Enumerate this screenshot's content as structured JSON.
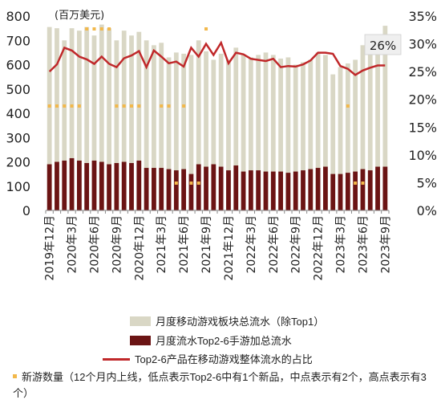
{
  "chart_data": {
    "type": "bar",
    "unit_label": "(百万美元)",
    "categories": [
      "2019年12月",
      "2020年1月",
      "2020年2月",
      "2020年3月",
      "2020年4月",
      "2020年5月",
      "2020年6月",
      "2020年7月",
      "2020年8月",
      "2020年9月",
      "2020年10月",
      "2020年11月",
      "2020年12月",
      "2021年1月",
      "2021年2月",
      "2021年3月",
      "2021年4月",
      "2021年5月",
      "2021年6月",
      "2021年7月",
      "2021年8月",
      "2021年9月",
      "2021年10月",
      "2021年11月",
      "2021年12月",
      "2022年1月",
      "2022年2月",
      "2022年3月",
      "2022年4月",
      "2022年5月",
      "2022年6月",
      "2022年7月",
      "2022年8月",
      "2022年9月",
      "2022年10月",
      "2022年11月",
      "2022年12月",
      "2023年1月",
      "2023年2月",
      "2023年3月",
      "2023年4月",
      "2023年5月",
      "2023年6月",
      "2023年7月",
      "2023年8月",
      "2023年9月"
    ],
    "tick_labels": [
      "2019年12月",
      "2020年3月",
      "2020年6月",
      "2020年9月",
      "2020年12月",
      "2021年3月",
      "2021年6月",
      "2021年9月",
      "2021年12月",
      "2022年3月",
      "2022年6月",
      "2022年9月",
      "2022年12月",
      "2023年3月",
      "2023年6月",
      "2023年9月"
    ],
    "tick_every": 3,
    "y_left": {
      "range": [
        0,
        800
      ],
      "ticks": [
        0,
        100,
        200,
        300,
        400,
        500,
        600,
        700,
        800
      ]
    },
    "y_right": {
      "range": [
        0,
        35
      ],
      "ticks": [
        "0%",
        "5%",
        "10%",
        "15%",
        "20%",
        "25%",
        "30%",
        "35%"
      ]
    },
    "series": [
      {
        "name": "月度移动游戏板块总流水（除Top1）",
        "kind": "bar",
        "color": "#d9d7c5",
        "values": [
          755,
          750,
          700,
          750,
          740,
          755,
          720,
          765,
          750,
          700,
          740,
          720,
          735,
          700,
          680,
          690,
          630,
          650,
          645,
          640,
          700,
          655,
          620,
          645,
          620,
          670,
          640,
          630,
          640,
          650,
          640,
          625,
          630,
          600,
          610,
          620,
          650,
          640,
          560,
          590,
          605,
          620,
          680,
          680,
          720,
          760
        ]
      },
      {
        "name": "月度流水Top2-6手游加总流水",
        "kind": "bar",
        "color": "#6b1414",
        "values": [
          190,
          200,
          205,
          215,
          205,
          195,
          205,
          200,
          190,
          195,
          200,
          195,
          205,
          175,
          175,
          175,
          170,
          165,
          170,
          150,
          190,
          180,
          190,
          180,
          165,
          185,
          160,
          165,
          165,
          160,
          160,
          160,
          155,
          160,
          165,
          170,
          175,
          180,
          150,
          150,
          155,
          160,
          170,
          165,
          180,
          180
        ]
      },
      {
        "name": "Top2-6产品在移动游戏整体流水的占比",
        "kind": "line",
        "color": "#c0282a",
        "values": [
          25.0,
          26.3,
          29.3,
          28.8,
          27.7,
          27.2,
          26.4,
          27.7,
          26.4,
          25.8,
          27.4,
          27.9,
          28.7,
          25.8,
          28.8,
          27.7,
          26.5,
          26.8,
          25.9,
          29.3,
          27.7,
          30.0,
          28.0,
          30.2,
          26.5,
          28.4,
          28.1,
          27.3,
          27.1,
          26.9,
          27.3,
          25.8,
          26.0,
          25.9,
          26.3,
          27.0,
          28.4,
          28.4,
          28.2,
          26.0,
          25.5,
          24.4,
          25.2,
          25.7,
          26.1,
          26.1
        ]
      },
      {
        "name": "新游数量（12个月内上线，低点表示Top2-6中有1个新品，中点表示有2个，高点表示有3个）",
        "kind": "dots",
        "color": "#f2b84b",
        "values": [
          2,
          2,
          2,
          2,
          2,
          3,
          3,
          3,
          3,
          2,
          2,
          2,
          2,
          0,
          0,
          2,
          2,
          1,
          2,
          1,
          1,
          3,
          0,
          0,
          0,
          0,
          0,
          0,
          0,
          0,
          0,
          0,
          0,
          0,
          0,
          0,
          0,
          0,
          0,
          0,
          2,
          1,
          1,
          0,
          0,
          0
        ]
      }
    ],
    "annotation": "26%",
    "legend_position": "bottom"
  }
}
